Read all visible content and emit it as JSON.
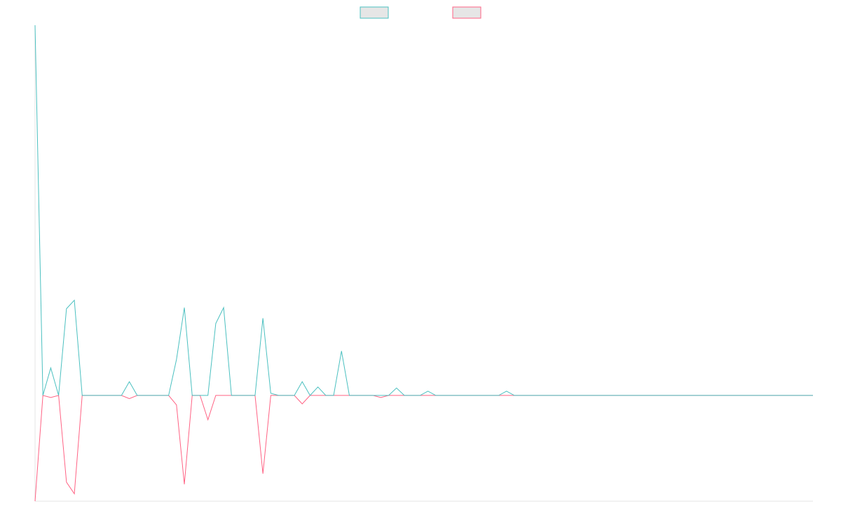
{
  "chart_data": {
    "type": "line",
    "legend_position": "top-center",
    "grid": false,
    "x_count": 100,
    "ylim": [
      -100,
      350
    ],
    "series": [
      {
        "color": "#4bc0c0",
        "legend_fill": "#e6e6e6",
        "values": [
          350,
          0,
          26,
          0,
          82,
          90,
          0,
          0,
          0,
          0,
          0,
          0,
          13,
          0,
          0,
          0,
          0,
          0,
          34,
          83,
          0,
          0,
          0,
          68,
          83,
          0,
          0,
          0,
          0,
          73,
          2,
          0,
          0,
          0,
          13,
          0,
          8,
          0,
          0,
          42,
          0,
          0,
          0,
          0,
          0,
          0,
          7,
          0,
          0,
          0,
          4,
          0,
          0,
          0,
          0,
          0,
          0,
          0,
          0,
          0,
          4,
          0,
          0,
          0,
          0,
          0,
          0,
          0,
          0,
          0,
          0,
          0,
          0,
          0,
          0,
          0,
          0,
          0,
          0,
          0,
          0,
          0,
          0,
          0,
          0,
          0,
          0,
          0,
          0,
          0,
          0,
          0,
          0,
          0,
          0,
          0,
          0,
          0,
          0,
          0
        ]
      },
      {
        "color": "#ff6384",
        "legend_fill": "#e6e6e6",
        "values": [
          -100,
          0,
          -2,
          0,
          -82,
          -93,
          0,
          0,
          0,
          0,
          0,
          0,
          -3,
          0,
          0,
          0,
          0,
          0,
          -9,
          -84,
          0,
          0,
          -23,
          0,
          0,
          0,
          0,
          0,
          0,
          -74,
          0,
          0,
          0,
          0,
          -8,
          0,
          0,
          0,
          0,
          0,
          0,
          0,
          0,
          0,
          -2,
          0,
          0,
          0,
          0,
          0,
          0,
          0,
          0,
          0,
          0,
          0,
          0,
          0,
          0,
          0,
          0,
          0,
          0,
          0,
          0,
          0,
          0,
          0,
          0,
          0,
          0,
          0,
          0,
          0,
          0,
          0,
          0,
          0,
          0,
          0,
          0,
          0,
          0,
          0,
          0,
          0,
          0,
          0,
          0,
          0,
          0,
          0,
          0,
          0,
          0,
          0,
          0,
          0,
          0,
          0
        ]
      }
    ]
  }
}
